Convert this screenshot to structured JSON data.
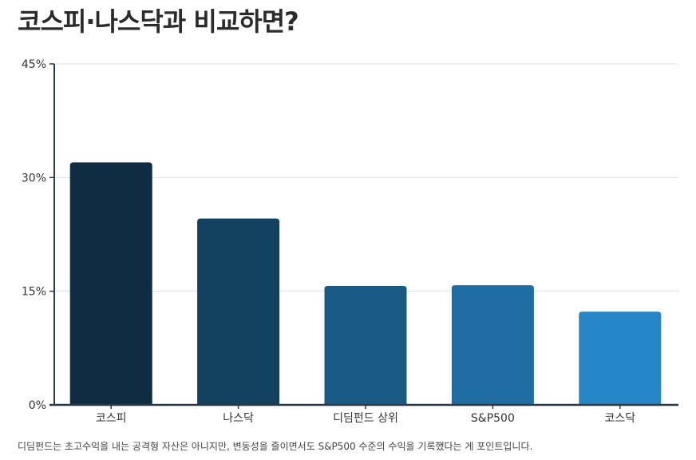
{
  "title": "코스피·나스닥과 비교하면?",
  "note": "디딤펀드는 초고수익을 내는 공격형 자산은 아니지만, 변동성을 줄이면서도 S&P500 수준의 수익을 기록했다는 게 포인트입니다.",
  "chart_data": {
    "type": "bar",
    "title": "",
    "xlabel": "",
    "ylabel": "",
    "categories": [
      "코스피",
      "나스닥",
      "디딤펀드 상위",
      "S&P500",
      "코스닥"
    ],
    "values": [
      32,
      24.6,
      15.7,
      15.8,
      12.3
    ],
    "ylim": [
      0,
      45
    ],
    "yticks": [
      0,
      15,
      30,
      45
    ],
    "ytick_labels": [
      "0%",
      "15%",
      "30%",
      "45%"
    ],
    "grid": true,
    "bar_colors": [
      "#0f2c42",
      "#12405f",
      "#195a85",
      "#1f6da3",
      "#2787c6"
    ],
    "axis_color": "#2b3a48",
    "grid_color": "#dddddd"
  }
}
